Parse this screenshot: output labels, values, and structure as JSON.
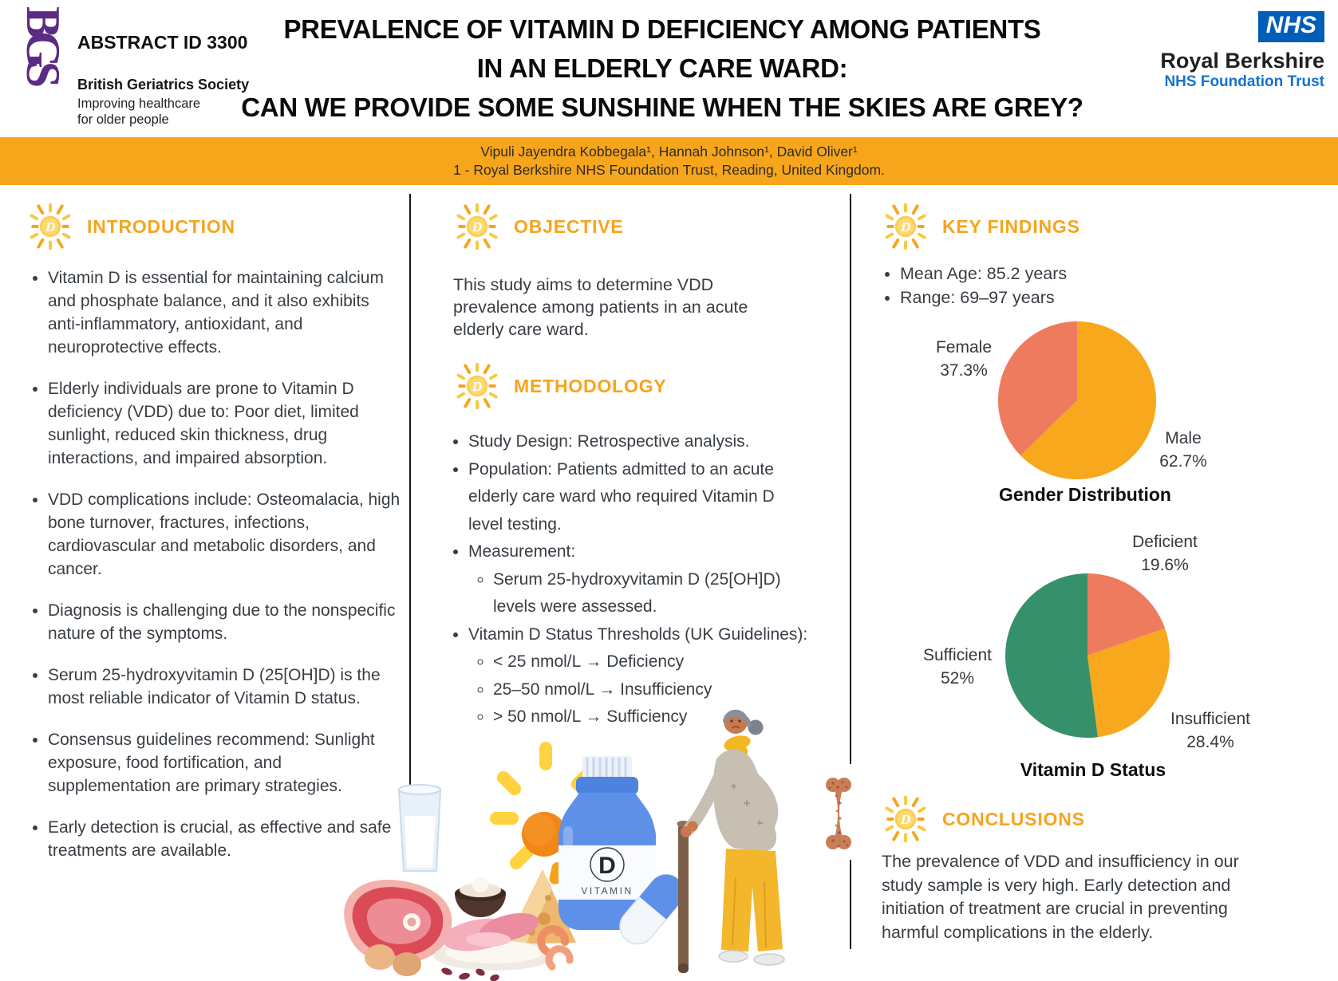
{
  "header": {
    "bgs_logo_text": "BGS",
    "abstract_id": "ABSTRACT ID 3300",
    "bgs_name": "British Geriatrics Society",
    "bgs_tagline_1": "Improving healthcare",
    "bgs_tagline_2": "for older people",
    "title_line1": "PREVALENCE OF VITAMIN D DEFICIENCY AMONG PATIENTS",
    "title_line2": "IN AN ELDERLY CARE WARD:",
    "title_line3": "CAN WE PROVIDE SOME SUNSHINE WHEN THE SKIES ARE GREY?",
    "nhs_logo": "NHS",
    "trust_name": "Royal Berkshire",
    "trust_sub": "NHS Foundation Trust"
  },
  "authors_banner": {
    "authors": "Vipuli Jayendra Kobbegala¹, Hannah Johnson¹, David Oliver¹",
    "affiliation": "1 - Royal Berkshire NHS Foundation Trust, Reading, United Kingdom."
  },
  "introduction": {
    "heading": "INTRODUCTION",
    "bullets": [
      "Vitamin D is essential for maintaining calcium and phosphate balance, and it also exhibits anti-inflammatory, antioxidant, and neuroprotective effects.",
      "Elderly individuals are prone to Vitamin D deficiency (VDD) due to: Poor diet, limited sunlight, reduced skin thickness, drug interactions, and impaired absorption.",
      "VDD complications include: Osteomalacia, high bone turnover, fractures, infections, cardiovascular and metabolic disorders, and cancer.",
      "Diagnosis is challenging due to the nonspecific nature of the symptoms.",
      "Serum 25-hydroxyvitamin D (25[OH]D) is the most reliable indicator of Vitamin D status.",
      "Consensus guidelines recommend: Sunlight exposure, food fortification, and supplementation are primary strategies.",
      "Early detection is crucial, as effective and safe treatments are available."
    ]
  },
  "objective": {
    "heading": "OBJECTIVE",
    "text": "This study aims to determine VDD prevalence among patients in an acute elderly care ward."
  },
  "methodology": {
    "heading": "METHODOLOGY",
    "bullets": [
      {
        "text": "Study Design: Retrospective analysis.",
        "sub": []
      },
      {
        "text": "Population: Patients admitted to an acute elderly care ward who required Vitamin D level testing.",
        "sub": []
      },
      {
        "text": "Measurement:",
        "sub": [
          "Serum 25-hydroxyvitamin D (25[OH]D) levels were assessed."
        ]
      },
      {
        "text": "Vitamin D Status Thresholds (UK Guidelines):",
        "sub": [
          "< 25 nmol/L → Deficiency",
          "25–50 nmol/L → Insufficiency",
          "> 50 nmol/L → Sufficiency"
        ]
      }
    ]
  },
  "key_findings": {
    "heading": "KEY FINDINGS",
    "bullets": [
      "Mean Age: 85.2 years",
      "Range: 69–97 years"
    ]
  },
  "conclusions": {
    "heading": "CONCLUSIONS",
    "text": "The prevalence of VDD and insufficiency in our study sample is very high. Early detection and initiation of treatment are crucial in preventing harmful complications in the elderly."
  },
  "chart_data": [
    {
      "type": "pie",
      "title": "Gender Distribution",
      "legend_position": "outside-labels",
      "slices": [
        {
          "label": "Male",
          "pct": "62.7%",
          "value": 62.7,
          "color": "#F7A81C"
        },
        {
          "label": "Female",
          "pct": "37.3%",
          "value": 37.3,
          "color": "#EE7B5E"
        }
      ]
    },
    {
      "type": "pie",
      "title": "Vitamin D Status",
      "legend_position": "outside-labels",
      "slices": [
        {
          "label": "Deficient",
          "pct": "19.6%",
          "value": 19.6,
          "color": "#EE7B5E"
        },
        {
          "label": "Insufficient",
          "pct": "28.4%",
          "value": 28.4,
          "color": "#F7A81C"
        },
        {
          "label": "Sufficient",
          "pct": "52%",
          "value": 52,
          "color": "#35906B"
        }
      ]
    }
  ],
  "icons": {
    "sun_icon_letter": "D"
  },
  "illustration": {
    "bottle_letter": "D",
    "bottle_word": "VITAMIN"
  },
  "colors": {
    "accent_orange": "#F6A41D",
    "banner_orange": "#F7A61C",
    "pie_orange": "#F7A81C",
    "pie_salmon": "#EE7B5E",
    "pie_green": "#35906B",
    "bgs_purple": "#5C2B85",
    "nhs_blue": "#005EB8",
    "body_text": "#383E44"
  }
}
